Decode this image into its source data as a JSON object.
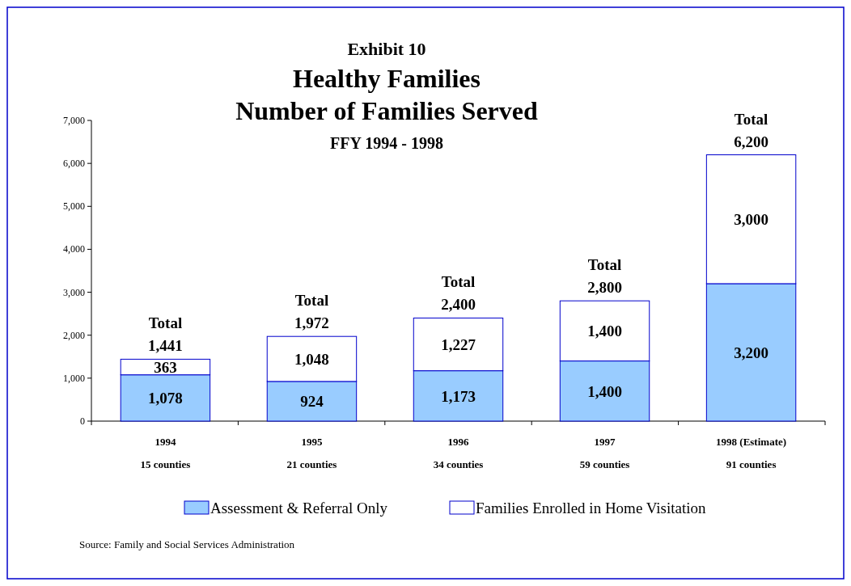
{
  "chart_data": {
    "type": "bar",
    "stacked": true,
    "title": "Exhibit 10\nHealthy Families\nNumber of Families Served",
    "subtitle": "FFY 1994 - 1998",
    "categories": [
      "1994\n15 counties",
      "1995\n21 counties",
      "1996\n34 counties",
      "1997\n59 counties",
      "1998 (Estimate)\n91 counties"
    ],
    "series": [
      {
        "name": "Assessment & Referral Only",
        "color": "#99ccff",
        "values": [
          1078,
          924,
          1173,
          1400,
          3200
        ],
        "value_labels": [
          "1,078",
          "924",
          "1,173",
          "1,400",
          "3,200"
        ]
      },
      {
        "name": "Families Enrolled in Home Visitation",
        "color": "#ffffff",
        "values": [
          363,
          1048,
          1227,
          1400,
          3000
        ],
        "value_labels": [
          "363",
          "1,048",
          "1,227",
          "1,400",
          "3,000"
        ]
      }
    ],
    "ylim": [
      0,
      7000
    ],
    "yticks": [
      {
        "value": 0,
        "label": "0"
      },
      {
        "value": 1000,
        "label": "1,000"
      },
      {
        "value": 2000,
        "label": "2,000"
      },
      {
        "value": 3000,
        "label": "3,000"
      },
      {
        "value": 4000,
        "label": "4,000"
      },
      {
        "value": 5000,
        "label": "5,000"
      },
      {
        "value": 6000,
        "label": "6,000"
      },
      {
        "value": 7000,
        "label": "7,000"
      }
    ],
    "totals": [
      "Total\n1,441",
      "Total\n1,972",
      "Total\n2,400",
      "Total\n2,800",
      "Total\n6,200"
    ],
    "legend": "bottom",
    "annotations": [
      "Source:  Family and Social Services Administration"
    ]
  }
}
